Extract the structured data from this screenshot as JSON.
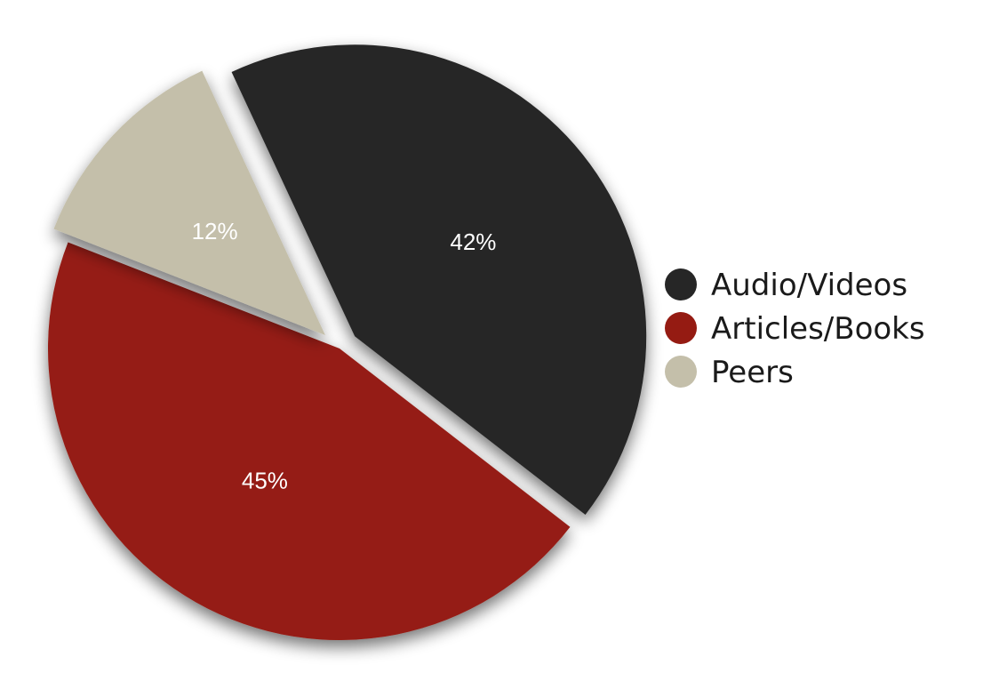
{
  "chart_data": {
    "type": "pie",
    "start_angle_deg": -25,
    "slices": [
      {
        "label": "Audio/Videos",
        "value": 42,
        "value_label": "42%",
        "color": "#262626",
        "exploded": true
      },
      {
        "label": "Articles/Books",
        "value": 45,
        "value_label": "45%",
        "color": "#951b12",
        "exploded": false
      },
      {
        "label": "Peers",
        "value": 12,
        "value_label": "12%",
        "color": "#c4bfaa",
        "exploded": true
      }
    ],
    "legend": {
      "position": "right",
      "items": [
        "Audio/Videos",
        "Articles/Books",
        "Peers"
      ]
    }
  }
}
